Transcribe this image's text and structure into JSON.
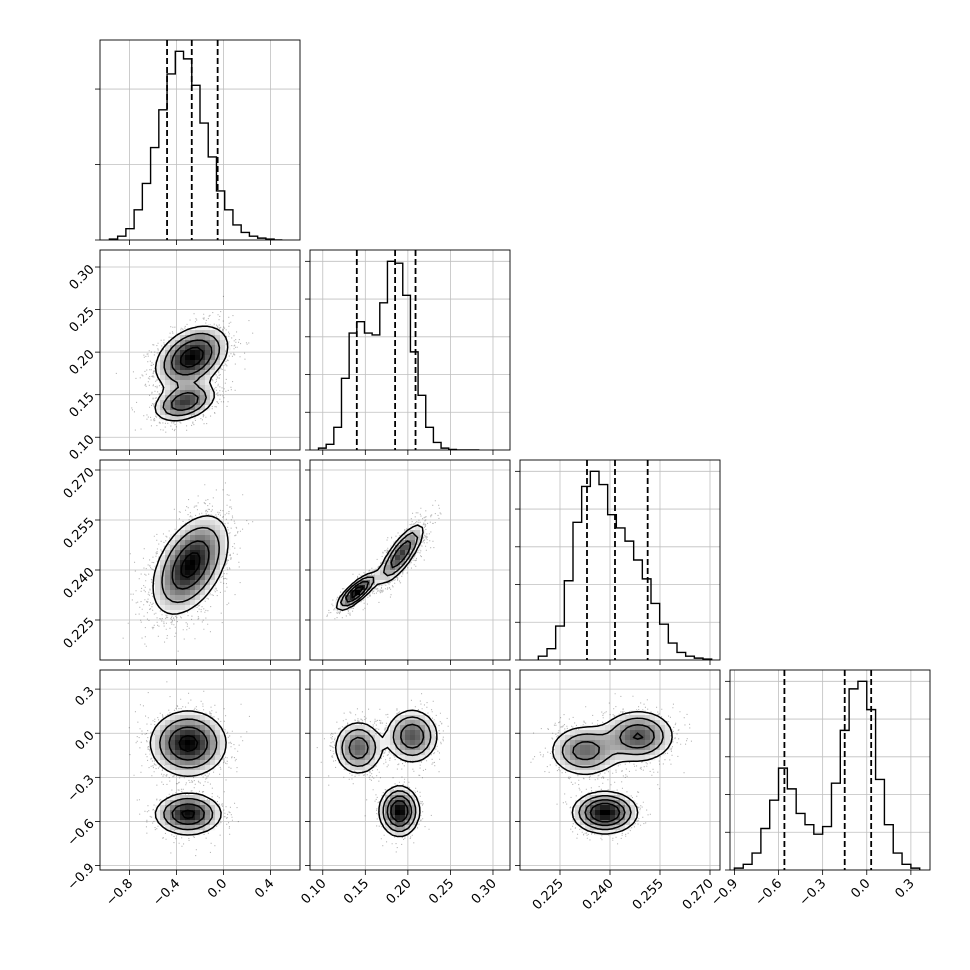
{
  "chart_data": {
    "type": "corner",
    "description_free": true,
    "parameters": 4,
    "grid": true,
    "panels": [
      {
        "type": "histogram",
        "row": 0,
        "col": 0,
        "xlim": [
          -1.05,
          0.65
        ],
        "bin_edges": [
          -0.97,
          -0.9,
          -0.83,
          -0.76,
          -0.69,
          -0.62,
          -0.55,
          -0.48,
          -0.41,
          -0.34,
          -0.27,
          -0.2,
          -0.13,
          -0.06,
          0.01,
          0.08,
          0.15,
          0.22,
          0.29,
          0.36,
          0.43,
          0.5
        ],
        "counts": [
          0.005,
          0.02,
          0.06,
          0.16,
          0.3,
          0.49,
          0.69,
          0.88,
          1.0,
          0.96,
          0.82,
          0.62,
          0.44,
          0.26,
          0.16,
          0.08,
          0.04,
          0.02,
          0.01,
          0.005,
          0.0
        ],
        "quantiles": [
          -0.48,
          -0.27,
          -0.05
        ],
        "y_ticks": [
          0.0,
          0.4,
          0.8
        ]
      },
      {
        "type": "histogram",
        "row": 1,
        "col": 1,
        "xlim": [
          0.085,
          0.32
        ],
        "bin_edges": [
          0.095,
          0.104,
          0.113,
          0.122,
          0.131,
          0.14,
          0.149,
          0.158,
          0.167,
          0.176,
          0.185,
          0.194,
          0.203,
          0.212,
          0.221,
          0.23,
          0.239,
          0.248,
          0.257,
          0.266,
          0.275,
          0.284
        ],
        "counts": [
          0.01,
          0.03,
          0.12,
          0.38,
          0.62,
          0.68,
          0.62,
          0.61,
          0.78,
          1.0,
          0.99,
          0.82,
          0.52,
          0.29,
          0.12,
          0.04,
          0.01,
          0.003,
          0.0,
          0.0,
          0.0
        ],
        "quantiles": [
          0.14,
          0.185,
          0.209
        ],
        "y_ticks": [
          0.0,
          0.2,
          0.4,
          0.6,
          0.8,
          1.0
        ]
      },
      {
        "type": "histogram",
        "row": 2,
        "col": 2,
        "xlim": [
          0.213,
          0.273
        ],
        "bin_edges": [
          0.2185,
          0.2211,
          0.2237,
          0.2263,
          0.2289,
          0.2315,
          0.2341,
          0.2367,
          0.2393,
          0.2419,
          0.2445,
          0.2471,
          0.2497,
          0.2523,
          0.2549,
          0.2575,
          0.2601,
          0.2627,
          0.2653,
          0.2679,
          0.2705
        ],
        "counts": [
          0.02,
          0.06,
          0.18,
          0.42,
          0.73,
          0.92,
          1.0,
          0.93,
          0.77,
          0.7,
          0.63,
          0.53,
          0.43,
          0.3,
          0.19,
          0.09,
          0.04,
          0.02,
          0.01,
          0.005
        ],
        "quantiles": [
          0.2331,
          0.2415,
          0.2513
        ],
        "y_ticks": [
          0.0,
          0.2,
          0.4,
          0.6,
          0.8,
          1.0
        ]
      },
      {
        "type": "histogram",
        "row": 3,
        "col": 3,
        "xlim": [
          -0.93,
          0.43
        ],
        "bin_edges": [
          -0.9,
          -0.84,
          -0.78,
          -0.72,
          -0.66,
          -0.6,
          -0.54,
          -0.48,
          -0.42,
          -0.36,
          -0.3,
          -0.24,
          -0.18,
          -0.12,
          -0.06,
          0.0,
          0.06,
          0.12,
          0.18,
          0.24,
          0.3,
          0.36
        ],
        "counts": [
          0.01,
          0.03,
          0.09,
          0.22,
          0.37,
          0.54,
          0.43,
          0.3,
          0.24,
          0.19,
          0.23,
          0.46,
          0.74,
          0.96,
          1.0,
          0.85,
          0.48,
          0.24,
          0.09,
          0.03,
          0.01
        ],
        "quantiles": [
          -0.56,
          -0.15,
          0.03
        ],
        "y_ticks": [
          0.0,
          0.2,
          0.4,
          0.6,
          0.8,
          1.0
        ]
      },
      {
        "type": "2d",
        "row": 1,
        "col": 0,
        "xlim": [
          -1.05,
          0.65
        ],
        "ylim": [
          0.085,
          0.32
        ],
        "components": [
          {
            "weight": 0.7,
            "mean": [
              -0.27,
              0.194
            ],
            "sd": [
              0.16,
              0.019
            ],
            "rho": 0.35
          },
          {
            "weight": 0.3,
            "mean": [
              -0.33,
              0.141
            ],
            "sd": [
              0.14,
              0.012
            ],
            "rho": 0.35
          }
        ]
      },
      {
        "type": "2d",
        "row": 2,
        "col": 0,
        "xlim": [
          -1.05,
          0.65
        ],
        "ylim": [
          0.213,
          0.273
        ],
        "components": [
          {
            "weight": 1.0,
            "mean": [
              -0.28,
              0.2415
            ],
            "sd": [
              0.16,
              0.0074
            ],
            "rho": 0.45
          }
        ]
      },
      {
        "type": "2d",
        "row": 2,
        "col": 1,
        "xlim": [
          0.085,
          0.32
        ],
        "ylim": [
          0.213,
          0.273
        ],
        "components": [
          {
            "weight": 0.4,
            "mean": [
              0.14,
              0.2335
            ],
            "sd": [
              0.012,
              0.0028
            ],
            "rho": 0.8
          },
          {
            "weight": 0.6,
            "mean": [
              0.192,
              0.2448
            ],
            "sd": [
              0.014,
              0.0047
            ],
            "rho": 0.8
          }
        ]
      },
      {
        "type": "2d",
        "row": 3,
        "col": 0,
        "xlim": [
          -1.05,
          0.65
        ],
        "ylim": [
          -0.93,
          0.43
        ],
        "components": [
          {
            "weight": 0.65,
            "mean": [
              -0.3,
              -0.07
            ],
            "sd": [
              0.16,
              0.11
            ],
            "rho": 0.0
          },
          {
            "weight": 0.35,
            "mean": [
              -0.3,
              -0.55
            ],
            "sd": [
              0.14,
              0.07
            ],
            "rho": 0.0
          }
        ]
      },
      {
        "type": "2d",
        "row": 3,
        "col": 1,
        "xlim": [
          0.085,
          0.32
        ],
        "ylim": [
          -0.93,
          0.43
        ],
        "components": [
          {
            "weight": 0.3,
            "mean": [
              0.142,
              -0.1
            ],
            "sd": [
              0.014,
              0.09
            ],
            "rho": 0.0
          },
          {
            "weight": 0.35,
            "mean": [
              0.205,
              -0.02
            ],
            "sd": [
              0.015,
              0.09
            ],
            "rho": 0.0
          },
          {
            "weight": 0.35,
            "mean": [
              0.19,
              -0.53
            ],
            "sd": [
              0.011,
              0.08
            ],
            "rho": 0.0
          }
        ]
      },
      {
        "type": "2d",
        "row": 3,
        "col": 2,
        "xlim": [
          0.213,
          0.273
        ],
        "ylim": [
          -0.93,
          0.43
        ],
        "components": [
          {
            "weight": 0.3,
            "mean": [
              0.2325,
              -0.12
            ],
            "sd": [
              0.0055,
              0.09
            ],
            "rho": 0.0
          },
          {
            "weight": 0.35,
            "mean": [
              0.2485,
              -0.02
            ],
            "sd": [
              0.0055,
              0.09
            ],
            "rho": 0.0
          },
          {
            "weight": 0.35,
            "mean": [
              0.2385,
              -0.54
            ],
            "sd": [
              0.0048,
              0.07
            ],
            "rho": 0.0
          }
        ]
      }
    ],
    "column_x_ticks": [
      {
        "values": [
          -0.8,
          -0.4,
          0.0,
          0.4
        ],
        "labels": [
          "−0.8",
          "−0.4",
          "0.0",
          "0.4"
        ]
      },
      {
        "values": [
          0.1,
          0.15,
          0.2,
          0.25,
          0.3
        ],
        "labels": [
          "0.10",
          "0.15",
          "0.20",
          "0.25",
          "0.30"
        ]
      },
      {
        "values": [
          0.225,
          0.24,
          0.255,
          0.27
        ],
        "labels": [
          "0.225",
          "0.240",
          "0.255",
          "0.270"
        ]
      },
      {
        "values": [
          -0.9,
          -0.6,
          -0.3,
          0.0,
          0.3
        ],
        "labels": [
          "−0.9",
          "−0.6",
          "−0.3",
          "0.0",
          "0.3"
        ]
      }
    ],
    "row_y_ticks": [
      null,
      {
        "values": [
          0.1,
          0.15,
          0.2,
          0.25,
          0.3
        ],
        "labels": [
          "0.10",
          "0.15",
          "0.20",
          "0.25",
          "0.30"
        ]
      },
      {
        "values": [
          0.225,
          0.24,
          0.255,
          0.27
        ],
        "labels": [
          "0.225",
          "0.240",
          "0.255",
          "0.270"
        ]
      },
      {
        "values": [
          -0.9,
          -0.6,
          -0.3,
          0.0,
          0.3
        ],
        "labels": [
          "−0.9",
          "−0.6",
          "−0.3",
          "0.0",
          "0.3"
        ]
      }
    ]
  }
}
